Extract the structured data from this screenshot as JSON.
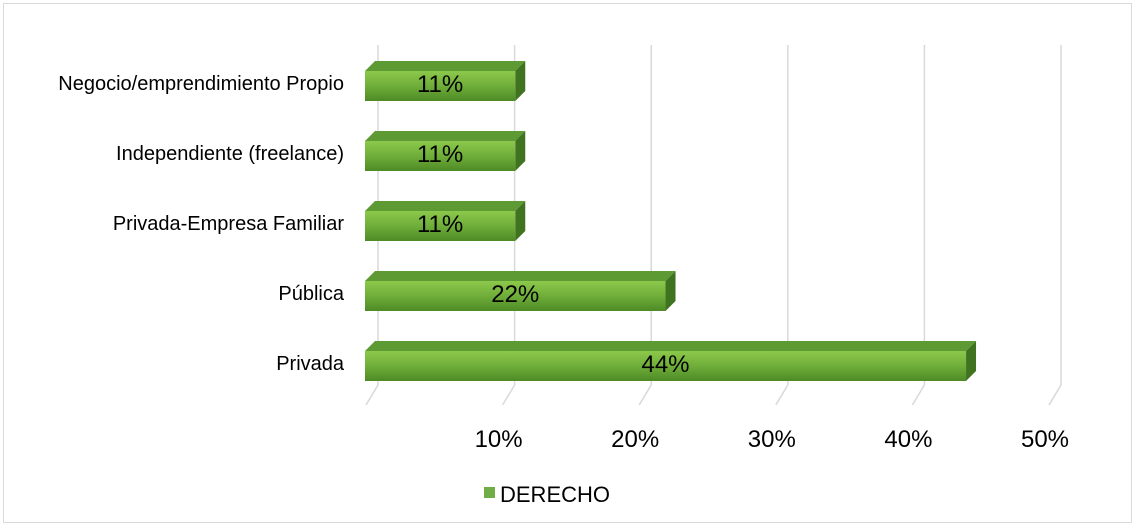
{
  "chart_data": {
    "type": "bar",
    "orientation": "horizontal",
    "three_d": true,
    "categories": [
      "Negocio/emprendimiento Propio",
      "Independiente (freelance)",
      "Privada-Empresa Familiar",
      "Pública",
      "Privada"
    ],
    "series": [
      {
        "name": "DERECHO",
        "values": [
          11,
          11,
          11,
          22,
          44
        ],
        "labels": [
          "11%",
          "11%",
          "11%",
          "22%",
          "44%"
        ],
        "color": "#70ad47"
      }
    ],
    "x_ticks": [
      10,
      20,
      30,
      40,
      50
    ],
    "x_tick_labels": [
      "10%",
      "20%",
      "30%",
      "40%",
      "50%"
    ],
    "xlim": [
      0,
      50
    ],
    "grid": true,
    "legend_position": "bottom"
  }
}
